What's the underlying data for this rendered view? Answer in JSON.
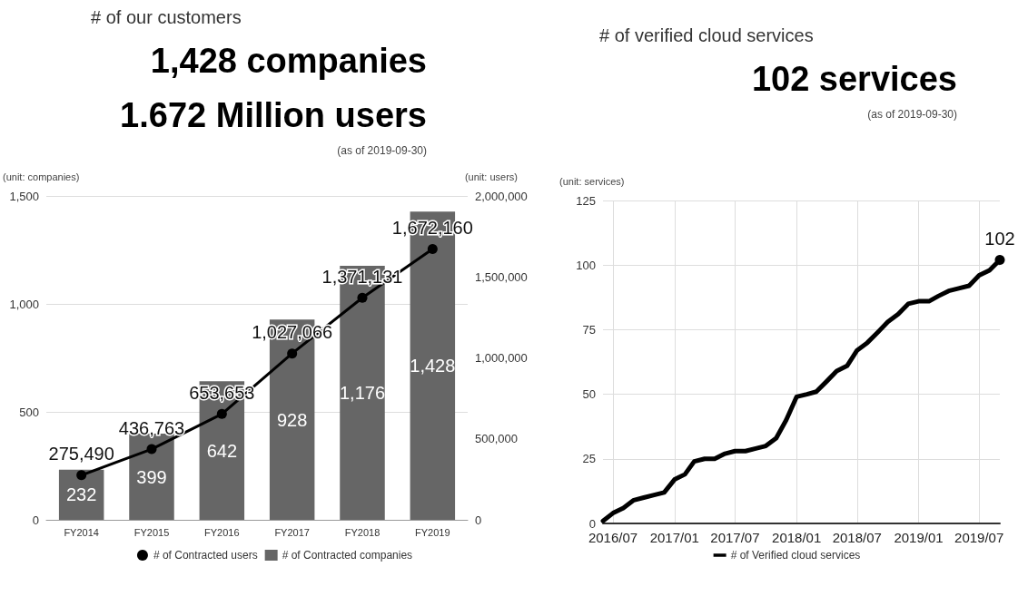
{
  "chart_data": [
    {
      "type": "bar",
      "title": "# of our customers",
      "annotations": [
        "1,428 companies",
        "1.672 Million users",
        "(as of 2019-09-30)"
      ],
      "ylabel": "(unit: companies)",
      "y2label": "(unit: users)",
      "categories": [
        "FY2014",
        "FY2015",
        "FY2016",
        "FY2017",
        "FY2018",
        "FY2019"
      ],
      "series": [
        {
          "name": "# of Contracted users",
          "type": "line",
          "axis": "y2",
          "color": "#000000",
          "values": [
            275490,
            436763,
            653653,
            1027066,
            1371131,
            1672160
          ],
          "value_labels": [
            "275,490",
            "436,763",
            "653,653",
            "1,027,066",
            "1,371,131",
            "1,672,160"
          ]
        },
        {
          "name": "# of Contracted companies",
          "type": "bar",
          "color": "#666666",
          "values": [
            232,
            399,
            642,
            928,
            1176,
            1428
          ],
          "value_labels": [
            "232",
            "399",
            "642",
            "928",
            "1,176",
            "1,428"
          ]
        }
      ],
      "ylim": [
        0,
        1500
      ],
      "yticks": [
        0,
        500,
        {
          "value": 1000,
          "label": "1,000"
        },
        {
          "value": 1500,
          "label": "1,500"
        }
      ],
      "y2lim": [
        0,
        2000000
      ],
      "y2ticks": [
        0,
        {
          "value": 500000,
          "label": "500,000"
        },
        {
          "value": 1000000,
          "label": "1,000,000"
        },
        {
          "value": 1500000,
          "label": "1,500,000"
        },
        {
          "value": 2000000,
          "label": "2,000,000"
        }
      ],
      "grid": "y",
      "legend": "bottom",
      "marker": "circle"
    },
    {
      "type": "line",
      "title": "# of verified cloud services",
      "annotations": [
        "102 services",
        "(as of 2019-09-30)"
      ],
      "ylabel": "(unit: services)",
      "x": [
        "2016-06",
        "2016-07",
        "2016-08",
        "2016-09",
        "2016-10",
        "2016-11",
        "2016-12",
        "2017-01",
        "2017-02",
        "2017-03",
        "2017-04",
        "2017-05",
        "2017-06",
        "2017-07",
        "2017-08",
        "2017-09",
        "2017-10",
        "2017-11",
        "2017-12",
        "2018-01",
        "2018-02",
        "2018-03",
        "2018-04",
        "2018-05",
        "2018-06",
        "2018-07",
        "2018-08",
        "2018-09",
        "2018-10",
        "2018-11",
        "2018-12",
        "2019-01",
        "2019-02",
        "2019-03",
        "2019-04",
        "2019-05",
        "2019-06",
        "2019-07",
        "2019-08",
        "2019-09"
      ],
      "series": [
        {
          "name": "# of Verified cloud services",
          "color": "#000000",
          "values": [
            1,
            4,
            6,
            9,
            10,
            11,
            12,
            17,
            19,
            24,
            25,
            25,
            27,
            28,
            28,
            29,
            30,
            33,
            40,
            49,
            50,
            51,
            55,
            59,
            61,
            67,
            70,
            74,
            78,
            81,
            85,
            86,
            86,
            88,
            90,
            91,
            92,
            96,
            98,
            102
          ],
          "value_labels": [
            null,
            null,
            null,
            null,
            null,
            null,
            null,
            null,
            null,
            null,
            null,
            null,
            null,
            null,
            null,
            null,
            null,
            null,
            null,
            null,
            null,
            null,
            null,
            null,
            null,
            null,
            null,
            null,
            null,
            null,
            null,
            null,
            null,
            null,
            null,
            null,
            null,
            null,
            null,
            "102"
          ]
        }
      ],
      "xlim": [
        "2016-06",
        "2019-09"
      ],
      "xticks": [
        {
          "value": "2016-07",
          "label": "2016/07"
        },
        {
          "value": "2017-01",
          "label": "2017/01"
        },
        {
          "value": "2017-07",
          "label": "2017/07"
        },
        {
          "value": "2018-01",
          "label": "2018/01"
        },
        {
          "value": "2018-07",
          "label": "2018/07"
        },
        {
          "value": "2019-01",
          "label": "2019/01"
        },
        {
          "value": "2019-07",
          "label": "2019/07"
        }
      ],
      "ylim": [
        0,
        125
      ],
      "yticks": [
        0,
        25,
        50,
        75,
        100,
        125
      ],
      "grid": true,
      "legend": "bottom",
      "line_style": "solid"
    }
  ]
}
